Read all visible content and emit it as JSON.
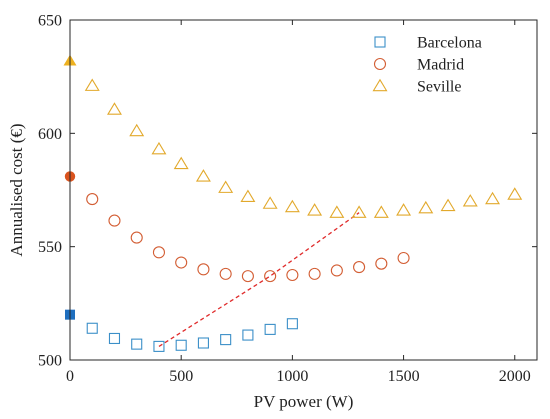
{
  "chart_data": {
    "type": "scatter",
    "xlabel": "PV power (W)",
    "ylabel": "Annualised cost (€)",
    "xlim": [
      0,
      2100
    ],
    "ylim": [
      500,
      650
    ],
    "xticks": [
      0,
      500,
      1000,
      1500,
      2000
    ],
    "yticks": [
      500,
      550,
      600,
      650
    ],
    "grid": false,
    "legend_position": "top-right",
    "series": [
      {
        "name": "Barcelona",
        "marker": "square",
        "color": "#3B8FC8",
        "x": [
          100,
          200,
          300,
          400,
          500,
          600,
          700,
          800,
          900,
          1000
        ],
        "y": [
          514,
          509.5,
          507,
          506,
          506.5,
          507.5,
          509,
          511,
          513.5,
          516
        ]
      },
      {
        "name": "Madrid",
        "marker": "circle",
        "color": "#D35E34",
        "x": [
          100,
          200,
          300,
          400,
          500,
          600,
          700,
          800,
          900,
          1000,
          1100,
          1200,
          1300,
          1400,
          1500
        ],
        "y": [
          571,
          561.5,
          554,
          547.5,
          543,
          540,
          538,
          537,
          537,
          537.5,
          538,
          539.5,
          541,
          542.5,
          545
        ]
      },
      {
        "name": "Seville",
        "marker": "triangle",
        "color": "#E2A92C",
        "x": [
          100,
          200,
          300,
          400,
          500,
          600,
          700,
          800,
          900,
          1000,
          1100,
          1200,
          1300,
          1400,
          1500,
          1600,
          1700,
          1800,
          1900,
          2000
        ],
        "y": [
          621,
          610.5,
          601,
          593,
          586.5,
          581,
          576,
          572,
          569,
          567.5,
          566,
          565,
          565,
          565,
          566,
          567,
          568,
          570,
          571,
          573
        ]
      }
    ],
    "reference_points": [
      {
        "series": "Barcelona",
        "marker": "filled-square",
        "color": "#1F6FBF",
        "x": 0,
        "y": 520
      },
      {
        "series": "Madrid",
        "marker": "filled-circle",
        "color": "#D9531E",
        "x": 0,
        "y": 581
      },
      {
        "series": "Seville",
        "marker": "filled-triangle",
        "color": "#EDB120",
        "x": 0,
        "y": 632
      }
    ],
    "minimum_line": {
      "style": "dashed",
      "color": "#E02B2B",
      "points": [
        [
          400,
          506
        ],
        [
          900,
          537
        ],
        [
          1300,
          565
        ]
      ]
    }
  }
}
